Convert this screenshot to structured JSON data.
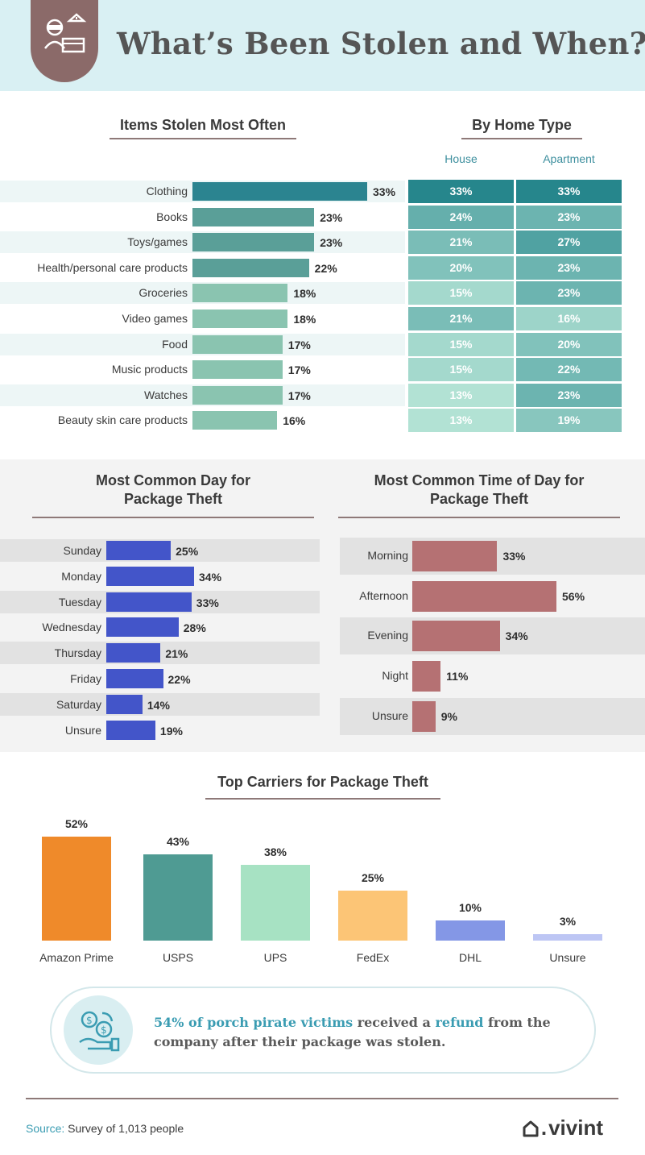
{
  "title": "What’s Been Stolen and When?",
  "icon": "thief-package-icon",
  "items_section": {
    "title": "Items Stolen Most Often"
  },
  "home_type_section": {
    "title": "By Home Type",
    "col_house": "House",
    "col_apartment": "Apartment"
  },
  "day_section": {
    "title_line1": "Most Common Day for",
    "title_line2": "Package Theft"
  },
  "time_section": {
    "title_line1": "Most Common Time of Day for",
    "title_line2": "Package Theft"
  },
  "carrier_section": {
    "title": "Top Carriers for Package Theft"
  },
  "chart_data": [
    {
      "type": "bar",
      "orientation": "horizontal",
      "title": "Items Stolen Most Often",
      "categories": [
        "Clothing",
        "Books",
        "Toys/games",
        "Health/personal care products",
        "Groceries",
        "Video games",
        "Food",
        "Music products",
        "Watches",
        "Beauty skin care products"
      ],
      "values": [
        33,
        23,
        23,
        22,
        18,
        18,
        17,
        17,
        17,
        16
      ],
      "labels": [
        "33%",
        "23%",
        "23%",
        "22%",
        "18%",
        "18%",
        "17%",
        "17%",
        "17%",
        "16%"
      ]
    },
    {
      "type": "heatmap",
      "title": "By Home Type",
      "columns": [
        "House",
        "Apartment"
      ],
      "rows": [
        "Clothing",
        "Books",
        "Toys/games",
        "Health/personal care products",
        "Groceries",
        "Video games",
        "Food",
        "Music products",
        "Watches",
        "Beauty skin care products"
      ],
      "house": [
        33,
        24,
        21,
        20,
        15,
        21,
        15,
        15,
        13,
        13
      ],
      "apartment": [
        33,
        23,
        27,
        23,
        23,
        16,
        20,
        22,
        23,
        19
      ],
      "house_labels": [
        "33%",
        "24%",
        "21%",
        "20%",
        "15%",
        "21%",
        "15%",
        "15%",
        "13%",
        "13%"
      ],
      "apartment_labels": [
        "33%",
        "23%",
        "27%",
        "23%",
        "23%",
        "16%",
        "20%",
        "22%",
        "23%",
        "19%"
      ]
    },
    {
      "type": "bar",
      "orientation": "horizontal",
      "title": "Most Common Day for Package Theft",
      "categories": [
        "Sunday",
        "Monday",
        "Tuesday",
        "Wednesday",
        "Thursday",
        "Friday",
        "Saturday",
        "Unsure"
      ],
      "values": [
        25,
        34,
        33,
        28,
        21,
        22,
        14,
        19
      ],
      "labels": [
        "25%",
        "34%",
        "33%",
        "28%",
        "21%",
        "22%",
        "14%",
        "19%"
      ]
    },
    {
      "type": "bar",
      "orientation": "horizontal",
      "title": "Most Common Time of Day for Package Theft",
      "categories": [
        "Morning",
        "Afternoon",
        "Evening",
        "Night",
        "Unsure"
      ],
      "values": [
        33,
        56,
        34,
        11,
        9
      ],
      "labels": [
        "33%",
        "56%",
        "34%",
        "11%",
        "9%"
      ]
    },
    {
      "type": "bar",
      "orientation": "vertical",
      "title": "Top Carriers for Package Theft",
      "categories": [
        "Amazon Prime",
        "USPS",
        "UPS",
        "FedEx",
        "DHL",
        "Unsure"
      ],
      "values": [
        52,
        43,
        38,
        25,
        10,
        3
      ],
      "labels": [
        "52%",
        "43%",
        "38%",
        "25%",
        "10%",
        "3%"
      ],
      "colors": [
        "#ef8a2a",
        "#4f9b93",
        "#a7e2c3",
        "#fcc576",
        "#8497e6",
        "#bdc6f4"
      ]
    }
  ],
  "colors": {
    "items_bar_dark": "#2b8490",
    "items_bar_mid": "#5a9f98",
    "items_bar_light": "#8ac4b0",
    "day_bar": "#4355c9",
    "time_bar": "#b57173"
  },
  "callout": {
    "icon": "money-refund-icon",
    "part1": "54% of porch pirate victims",
    "part2": " received a ",
    "part3": "refund",
    "part4": " from the company after their package was stolen."
  },
  "footer": {
    "source_key": "Source:",
    "source_text": " Survey of 1,013 people",
    "logo": "vivint",
    "logo_icon": "home-icon"
  }
}
